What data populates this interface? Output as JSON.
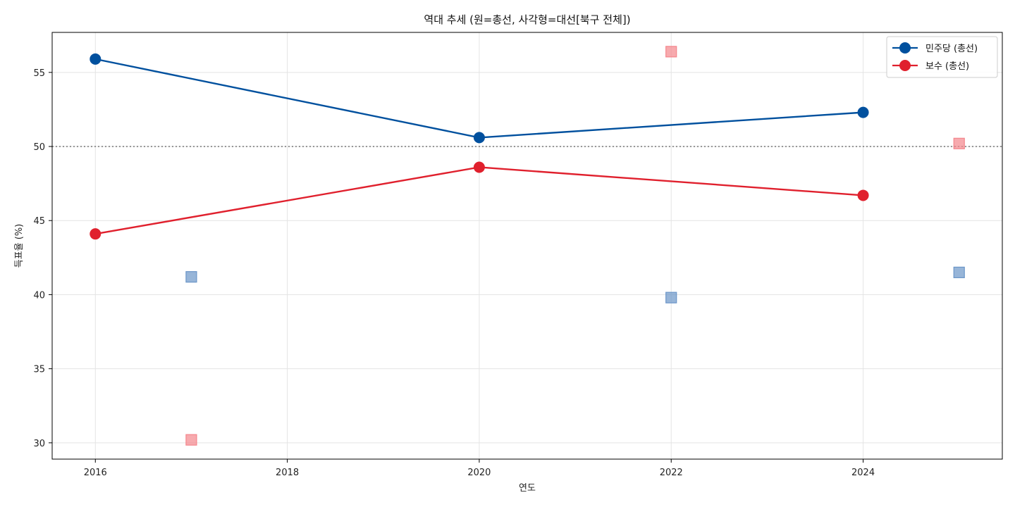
{
  "chart_data": {
    "type": "line",
    "title": "역대 추세 (원=총선, 사각형=대선[북구 전체])",
    "xlabel": "연도",
    "ylabel": "득표율 (%)",
    "xlim": [
      2015.55,
      2025.45
    ],
    "ylim": [
      28.9,
      57.7
    ],
    "x_ticks": [
      2016,
      2018,
      2020,
      2022,
      2024
    ],
    "y_ticks": [
      30,
      35,
      40,
      45,
      50,
      55
    ],
    "grid": true,
    "legend_position": "top-right",
    "reference_line": {
      "y": 50,
      "style": "dotted",
      "color": "#808080"
    },
    "series": [
      {
        "name": "민주당 (총선)",
        "kind": "line",
        "marker": "circle",
        "color": "#00509e",
        "x": [
          2016,
          2020,
          2024
        ],
        "values": [
          55.9,
          50.6,
          52.3
        ]
      },
      {
        "name": "보수 (총선)",
        "kind": "line",
        "marker": "circle",
        "color": "#e0202d",
        "x": [
          2016,
          2020,
          2024
        ],
        "values": [
          44.1,
          48.6,
          46.7
        ]
      },
      {
        "kind": "scatter",
        "marker": "square",
        "color": "#6b96c8",
        "x": [
          2017,
          2022,
          2025
        ],
        "values": [
          41.2,
          39.8,
          41.5
        ]
      },
      {
        "kind": "scatter",
        "marker": "square",
        "color": "#f4868c",
        "x": [
          2017,
          2022,
          2025
        ],
        "values": [
          30.2,
          56.4,
          50.2
        ]
      }
    ]
  }
}
